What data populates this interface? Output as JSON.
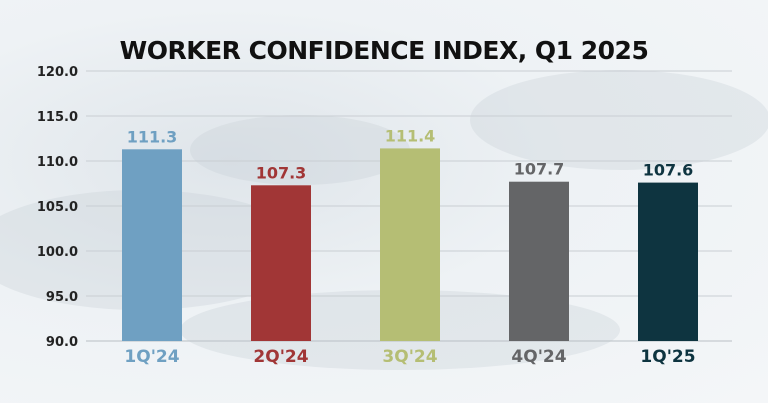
{
  "chart_data": {
    "type": "bar",
    "title": "WORKER CONFIDENCE INDEX, Q1 2025",
    "xlabel": "",
    "ylabel": "",
    "categories": [
      "1Q'24",
      "2Q'24",
      "3Q'24",
      "4Q'24",
      "1Q'25"
    ],
    "values": [
      111.3,
      107.3,
      111.4,
      107.7,
      107.6
    ],
    "value_labels": [
      "111.3",
      "107.3",
      "111.4",
      "107.7",
      "107.6"
    ],
    "ylim": [
      90,
      120
    ],
    "yticks": [
      90,
      95,
      100,
      105,
      110,
      115,
      120
    ],
    "ytick_labels": [
      "90.0",
      "95.0",
      "100.0",
      "105.0",
      "110.0",
      "115.0",
      "120.0"
    ],
    "grid": true,
    "legend": "none",
    "colors": [
      "#6fa0c2",
      "#a13636",
      "#b5be74",
      "#646567",
      "#0e3440"
    ]
  }
}
